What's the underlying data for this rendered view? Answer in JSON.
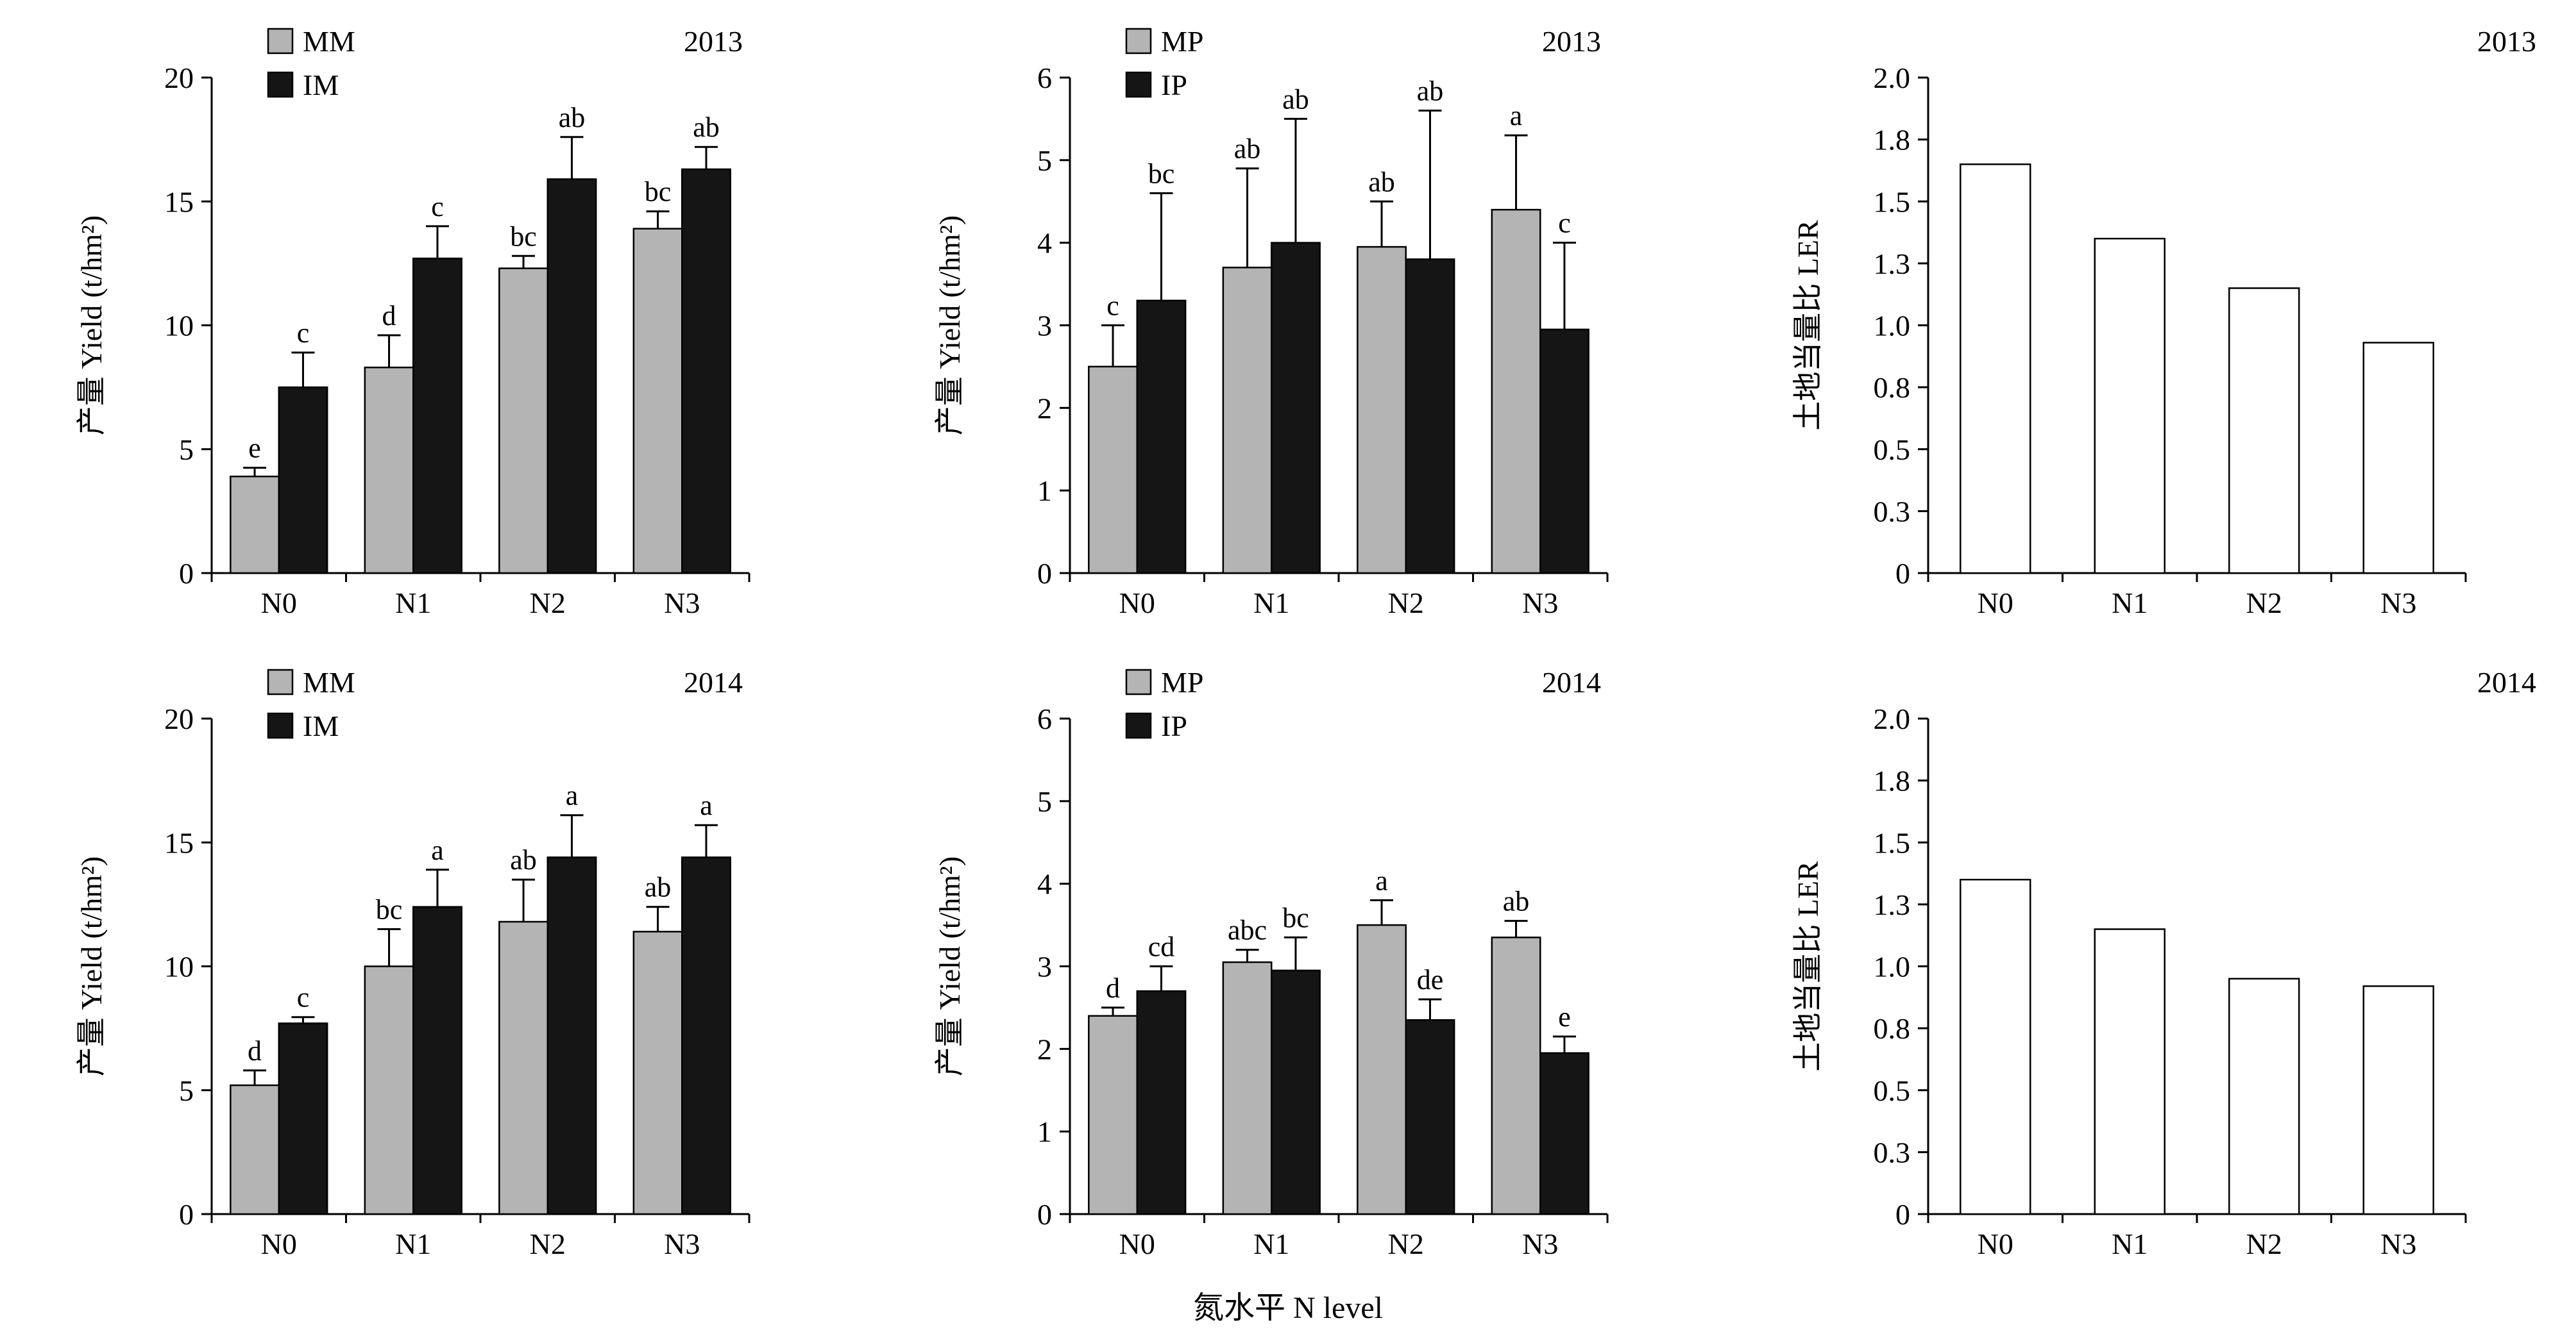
{
  "figure": {
    "xlabel": "氮水平 N level"
  },
  "chart_data": [
    {
      "id": "maize-2013",
      "type": "bar",
      "year": "2013",
      "ylabel": "产量 Yield (t/hm²)",
      "ylim": [
        0,
        20
      ],
      "yticks": [
        {
          "v": 0,
          "l": "0"
        },
        {
          "v": 5,
          "l": "5"
        },
        {
          "v": 10,
          "l": "10"
        },
        {
          "v": 15,
          "l": "15"
        },
        {
          "v": 20,
          "l": "20"
        }
      ],
      "categories": [
        "N0",
        "N1",
        "N2",
        "N3"
      ],
      "legend": true,
      "legend_position": "top-left-inside",
      "grid": false,
      "series": [
        {
          "name": "MM",
          "fill": "#b4b4b4",
          "stroke": "#000000",
          "values": [
            3.9,
            8.3,
            12.3,
            13.9
          ],
          "errors": [
            0.35,
            1.3,
            0.5,
            0.7
          ],
          "letters": [
            "e",
            "d",
            "bc",
            "bc"
          ]
        },
        {
          "name": "IM",
          "fill": "#151515",
          "stroke": "#000000",
          "values": [
            7.5,
            12.7,
            15.9,
            16.3
          ],
          "errors": [
            1.4,
            1.3,
            1.7,
            0.9
          ],
          "letters": [
            "c",
            "c",
            "ab",
            "ab"
          ]
        }
      ]
    },
    {
      "id": "pea-2013",
      "type": "bar",
      "year": "2013",
      "ylabel": "产量 Yield (t/hm²)",
      "ylim": [
        0,
        6
      ],
      "yticks": [
        {
          "v": 0,
          "l": "0"
        },
        {
          "v": 1,
          "l": "1"
        },
        {
          "v": 2,
          "l": "2"
        },
        {
          "v": 3,
          "l": "3"
        },
        {
          "v": 4,
          "l": "4"
        },
        {
          "v": 5,
          "l": "5"
        },
        {
          "v": 6,
          "l": "6"
        }
      ],
      "categories": [
        "N0",
        "N1",
        "N2",
        "N3"
      ],
      "legend": true,
      "legend_position": "top-left-inside",
      "grid": false,
      "series": [
        {
          "name": "MP",
          "fill": "#b4b4b4",
          "stroke": "#000000",
          "values": [
            2.5,
            3.7,
            3.95,
            4.4
          ],
          "errors": [
            0.5,
            1.2,
            0.55,
            0.9
          ],
          "letters": [
            "c",
            "ab",
            "ab",
            "a"
          ]
        },
        {
          "name": "IP",
          "fill": "#151515",
          "stroke": "#000000",
          "values": [
            3.3,
            4.0,
            3.8,
            2.95
          ],
          "errors": [
            1.3,
            1.5,
            1.8,
            1.05
          ],
          "letters": [
            "bc",
            "ab",
            "ab",
            "c"
          ]
        }
      ]
    },
    {
      "id": "ler-2013",
      "type": "bar",
      "year": "2013",
      "ylabel": "土地当量比 LER",
      "ylim": [
        0,
        2.0
      ],
      "yticks": [
        {
          "v": 0,
          "l": "0"
        },
        {
          "v": 0.25,
          "l": "0.3"
        },
        {
          "v": 0.5,
          "l": "0.5"
        },
        {
          "v": 0.75,
          "l": "0.8"
        },
        {
          "v": 1.0,
          "l": "1.0"
        },
        {
          "v": 1.25,
          "l": "1.3"
        },
        {
          "v": 1.5,
          "l": "1.5"
        },
        {
          "v": 1.75,
          "l": "1.8"
        },
        {
          "v": 2.0,
          "l": "2.0"
        }
      ],
      "categories": [
        "N0",
        "N1",
        "N2",
        "N3"
      ],
      "legend": false,
      "grid": false,
      "series": [
        {
          "name": "LER",
          "fill": "#ffffff",
          "stroke": "#000000",
          "values": [
            1.65,
            1.35,
            1.15,
            0.93
          ]
        }
      ]
    },
    {
      "id": "maize-2014",
      "type": "bar",
      "year": "2014",
      "ylabel": "产量 Yield (t/hm²)",
      "ylim": [
        0,
        20
      ],
      "yticks": [
        {
          "v": 0,
          "l": "0"
        },
        {
          "v": 5,
          "l": "5"
        },
        {
          "v": 10,
          "l": "10"
        },
        {
          "v": 15,
          "l": "15"
        },
        {
          "v": 20,
          "l": "20"
        }
      ],
      "categories": [
        "N0",
        "N1",
        "N2",
        "N3"
      ],
      "legend": true,
      "legend_position": "top-left-inside",
      "grid": false,
      "series": [
        {
          "name": "MM",
          "fill": "#b4b4b4",
          "stroke": "#000000",
          "values": [
            5.2,
            10.0,
            11.8,
            11.4
          ],
          "errors": [
            0.6,
            1.5,
            1.7,
            1.0
          ],
          "letters": [
            "d",
            "bc",
            "ab",
            "ab"
          ]
        },
        {
          "name": "IM",
          "fill": "#151515",
          "stroke": "#000000",
          "values": [
            7.7,
            12.4,
            14.4,
            14.4
          ],
          "errors": [
            0.25,
            1.5,
            1.7,
            1.3
          ],
          "letters": [
            "c",
            "a",
            "a",
            "a"
          ]
        }
      ]
    },
    {
      "id": "pea-2014",
      "type": "bar",
      "year": "2014",
      "ylabel": "产量 Yield (t/hm²)",
      "ylim": [
        0,
        6
      ],
      "yticks": [
        {
          "v": 0,
          "l": "0"
        },
        {
          "v": 1,
          "l": "1"
        },
        {
          "v": 2,
          "l": "2"
        },
        {
          "v": 3,
          "l": "3"
        },
        {
          "v": 4,
          "l": "4"
        },
        {
          "v": 5,
          "l": "5"
        },
        {
          "v": 6,
          "l": "6"
        }
      ],
      "categories": [
        "N0",
        "N1",
        "N2",
        "N3"
      ],
      "legend": true,
      "legend_position": "top-left-inside",
      "grid": false,
      "series": [
        {
          "name": "MP",
          "fill": "#b4b4b4",
          "stroke": "#000000",
          "values": [
            2.4,
            3.05,
            3.5,
            3.35
          ],
          "errors": [
            0.1,
            0.15,
            0.3,
            0.2
          ],
          "letters": [
            "d",
            "abc",
            "a",
            "ab"
          ]
        },
        {
          "name": "IP",
          "fill": "#151515",
          "stroke": "#000000",
          "values": [
            2.7,
            2.95,
            2.35,
            1.95
          ],
          "errors": [
            0.3,
            0.4,
            0.25,
            0.2
          ],
          "letters": [
            "cd",
            "bc",
            "de",
            "e"
          ]
        }
      ]
    },
    {
      "id": "ler-2014",
      "type": "bar",
      "year": "2014",
      "ylabel": "土地当量比 LER",
      "ylim": [
        0,
        2.0
      ],
      "yticks": [
        {
          "v": 0,
          "l": "0"
        },
        {
          "v": 0.25,
          "l": "0.3"
        },
        {
          "v": 0.5,
          "l": "0.5"
        },
        {
          "v": 0.75,
          "l": "0.8"
        },
        {
          "v": 1.0,
          "l": "1.0"
        },
        {
          "v": 1.25,
          "l": "1.3"
        },
        {
          "v": 1.5,
          "l": "1.5"
        },
        {
          "v": 1.75,
          "l": "1.8"
        },
        {
          "v": 2.0,
          "l": "2.0"
        }
      ],
      "categories": [
        "N0",
        "N1",
        "N2",
        "N3"
      ],
      "legend": false,
      "grid": false,
      "series": [
        {
          "name": "LER",
          "fill": "#ffffff",
          "stroke": "#000000",
          "values": [
            1.35,
            1.15,
            0.95,
            0.92
          ]
        }
      ]
    }
  ]
}
